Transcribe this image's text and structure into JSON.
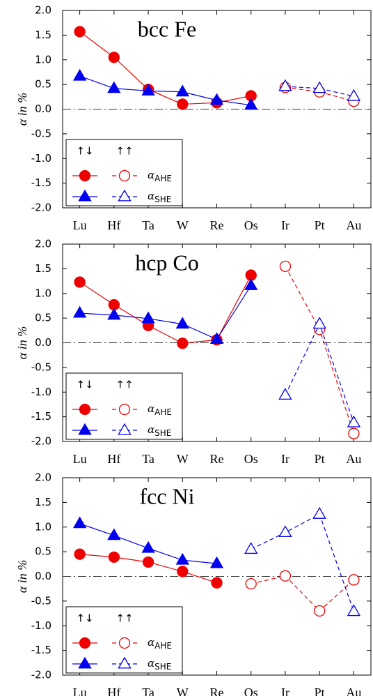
{
  "chart_data": [
    {
      "type": "line",
      "title": "bcc Fe",
      "ylabel": "α in %",
      "legend_symbol": "α",
      "categories": [
        "Lu",
        "Hf",
        "Ta",
        "W",
        "Re",
        "Os",
        "Ir",
        "Pt",
        "Au"
      ],
      "ylim": [
        -2,
        2
      ],
      "yticks": [
        {
          "value": 2,
          "label": "2.0"
        },
        1.5,
        {
          "value": 1,
          "label": "1.0"
        },
        0.5,
        {
          "value": 0,
          "label": "0.0"
        },
        -0.5,
        {
          "value": -1,
          "label": "-1.0"
        },
        -1.5,
        {
          "value": -2,
          "label": "-2.0"
        }
      ],
      "hline": 0,
      "series": [
        {
          "quantity": "AHE",
          "spin": "↑↓",
          "color": "#ee0000",
          "marker": "circle",
          "filled": true,
          "dashed": false,
          "values": [
            1.57,
            1.05,
            0.4,
            0.1,
            0.13,
            0.27,
            null,
            null,
            null
          ]
        },
        {
          "quantity": "SHE",
          "spin": "↑↓",
          "color": "#0000ee",
          "marker": "triangle",
          "filled": true,
          "dashed": false,
          "values": [
            0.67,
            0.42,
            0.37,
            0.35,
            0.18,
            0.08,
            null,
            null,
            null
          ]
        },
        {
          "quantity": "AHE",
          "spin": "↑↑",
          "color": "#ee0000",
          "marker": "circle",
          "filled": false,
          "dashed": true,
          "values": [
            null,
            null,
            null,
            null,
            null,
            null,
            0.44,
            0.35,
            0.16
          ]
        },
        {
          "quantity": "SHE",
          "spin": "↑↑",
          "color": "#0000ee",
          "marker": "triangle",
          "filled": false,
          "dashed": true,
          "values": [
            null,
            null,
            null,
            null,
            null,
            null,
            0.46,
            0.42,
            0.26
          ]
        }
      ]
    },
    {
      "type": "line",
      "title": "hcp Co",
      "ylabel": "α in %",
      "legend_symbol": "α",
      "categories": [
        "Lu",
        "Hf",
        "Ta",
        "W",
        "Re",
        "Os",
        "Ir",
        "Pt",
        "Au"
      ],
      "ylim": [
        -2,
        2
      ],
      "yticks": [
        {
          "value": 2,
          "label": "2.0"
        },
        1.5,
        {
          "value": 1,
          "label": "1.0"
        },
        0.5,
        {
          "value": 0,
          "label": "0.0"
        },
        -0.5,
        {
          "value": -1,
          "label": "-1.0"
        },
        -1.5,
        {
          "value": -2,
          "label": "-2.0"
        }
      ],
      "hline": 0,
      "series": [
        {
          "quantity": "AHE",
          "spin": "↑↓",
          "color": "#ee0000",
          "marker": "circle",
          "filled": true,
          "dashed": false,
          "values": [
            1.23,
            0.77,
            0.35,
            -0.01,
            0.06,
            1.37,
            null,
            null,
            null
          ]
        },
        {
          "quantity": "SHE",
          "spin": "↑↓",
          "color": "#0000ee",
          "marker": "triangle",
          "filled": true,
          "dashed": false,
          "values": [
            0.6,
            0.56,
            0.49,
            0.38,
            0.07,
            1.16,
            null,
            null,
            null
          ]
        },
        {
          "quantity": "AHE",
          "spin": "↑↑",
          "color": "#ee0000",
          "marker": "circle",
          "filled": false,
          "dashed": true,
          "values": [
            null,
            null,
            null,
            null,
            null,
            null,
            1.55,
            0.27,
            -1.84
          ]
        },
        {
          "quantity": "SHE",
          "spin": "↑↑",
          "color": "#0000ee",
          "marker": "triangle",
          "filled": false,
          "dashed": true,
          "values": [
            null,
            null,
            null,
            null,
            null,
            null,
            -1.06,
            0.38,
            -1.62
          ]
        }
      ]
    },
    {
      "type": "line",
      "title": "fcc Ni",
      "ylabel": "α in %",
      "legend_symbol": "α",
      "categories": [
        "Lu",
        "Hf",
        "Ta",
        "W",
        "Re",
        "Os",
        "Ir",
        "Pt",
        "Au"
      ],
      "ylim": [
        -2,
        2
      ],
      "yticks": [
        {
          "value": 2,
          "label": "2.0"
        },
        1.5,
        {
          "value": 1,
          "label": "1.0"
        },
        0.5,
        {
          "value": 0,
          "label": "0.0"
        },
        -0.5,
        {
          "value": -1,
          "label": "-1.0"
        },
        -1.5,
        {
          "value": -2,
          "label": "-2.0"
        }
      ],
      "hline": 0,
      "series": [
        {
          "quantity": "AHE",
          "spin": "↑↓",
          "color": "#ee0000",
          "marker": "circle",
          "filled": true,
          "dashed": false,
          "values": [
            0.45,
            0.39,
            0.29,
            0.1,
            -0.13,
            null,
            null,
            null,
            null
          ]
        },
        {
          "quantity": "SHE",
          "spin": "↑↓",
          "color": "#0000ee",
          "marker": "triangle",
          "filled": true,
          "dashed": false,
          "values": [
            1.07,
            0.83,
            0.57,
            0.33,
            0.26,
            null,
            null,
            null,
            null
          ]
        },
        {
          "quantity": "AHE",
          "spin": "↑↑",
          "color": "#ee0000",
          "marker": "circle",
          "filled": false,
          "dashed": true,
          "values": [
            null,
            null,
            null,
            null,
            null,
            -0.15,
            0.01,
            -0.7,
            -0.07
          ]
        },
        {
          "quantity": "SHE",
          "spin": "↑↑",
          "color": "#0000ee",
          "marker": "triangle",
          "filled": false,
          "dashed": true,
          "values": [
            null,
            null,
            null,
            null,
            null,
            0.55,
            0.89,
            1.26,
            -0.71
          ]
        }
      ]
    }
  ]
}
